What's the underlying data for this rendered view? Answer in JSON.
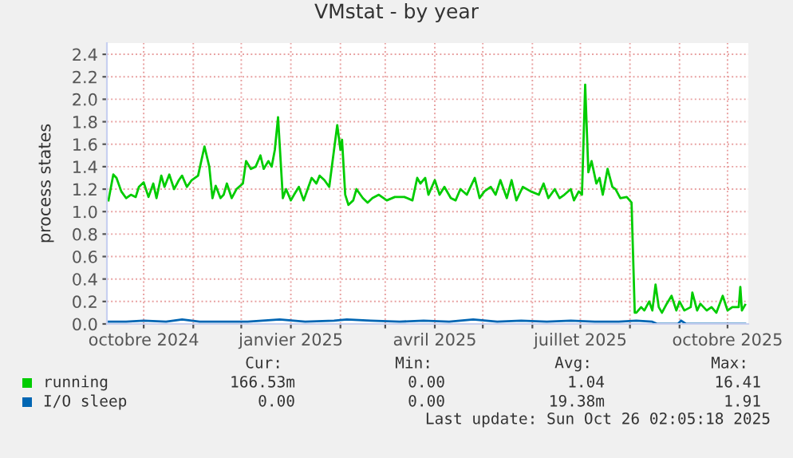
{
  "chart_data": {
    "type": "line",
    "title": "VMstat - by year",
    "ylabel": "process states",
    "legend": "bottom",
    "grid": true,
    "line_style": "solid",
    "marker": "none",
    "xlim": [
      "2024-09-08",
      "2025-10-14"
    ],
    "ylim": [
      0,
      2.5
    ],
    "xticks": [
      {
        "value": "2024-10-01",
        "label": "octobre 2024"
      },
      {
        "value": "2024-11-01",
        "label": null
      },
      {
        "value": "2024-12-01",
        "label": null
      },
      {
        "value": "2025-01-01",
        "label": "janvier 2025"
      },
      {
        "value": "2025-02-01",
        "label": null
      },
      {
        "value": "2025-03-01",
        "label": null
      },
      {
        "value": "2025-04-01",
        "label": "avril 2025"
      },
      {
        "value": "2025-05-01",
        "label": null
      },
      {
        "value": "2025-06-01",
        "label": null
      },
      {
        "value": "2025-07-01",
        "label": "juillet 2025"
      },
      {
        "value": "2025-08-01",
        "label": null
      },
      {
        "value": "2025-09-01",
        "label": null
      },
      {
        "value": "2025-10-01",
        "label": "octobre 2025"
      }
    ],
    "yticks": [
      {
        "value": 0,
        "label": "0.0"
      },
      {
        "value": 0.2,
        "label": "0.2"
      },
      {
        "value": 0.4,
        "label": "0.4"
      },
      {
        "value": 0.6,
        "label": "0.6"
      },
      {
        "value": 0.8,
        "label": "0.8"
      },
      {
        "value": 1.0,
        "label": "1.0"
      },
      {
        "value": 1.2,
        "label": "1.2"
      },
      {
        "value": 1.4,
        "label": "1.4"
      },
      {
        "value": 1.6,
        "label": "1.6"
      },
      {
        "value": 1.8,
        "label": "1.8"
      },
      {
        "value": 2.0,
        "label": "2.0"
      },
      {
        "value": 2.2,
        "label": "2.2"
      },
      {
        "value": 2.4,
        "label": "2.4"
      }
    ],
    "series": [
      {
        "name": "running",
        "color": "#00cc00",
        "x": [
          "2024-09-09",
          "2024-09-12",
          "2024-09-14",
          "2024-09-17",
          "2024-09-20",
          "2024-09-23",
          "2024-09-26",
          "2024-09-28",
          "2024-10-01",
          "2024-10-04",
          "2024-10-07",
          "2024-10-09",
          "2024-10-12",
          "2024-10-14",
          "2024-10-17",
          "2024-10-20",
          "2024-10-23",
          "2024-10-25",
          "2024-10-28",
          "2024-10-31",
          "2024-11-04",
          "2024-11-08",
          "2024-11-11",
          "2024-11-13",
          "2024-11-15",
          "2024-11-18",
          "2024-11-20",
          "2024-11-22",
          "2024-11-25",
          "2024-11-28",
          "2024-12-02",
          "2024-12-04",
          "2024-12-07",
          "2024-12-10",
          "2024-12-13",
          "2024-12-15",
          "2024-12-18",
          "2024-12-20",
          "2024-12-22",
          "2024-12-24",
          "2024-12-27",
          "2024-12-29",
          "2025-01-01",
          "2025-01-03",
          "2025-01-06",
          "2025-01-09",
          "2025-01-12",
          "2025-01-14",
          "2025-01-17",
          "2025-01-19",
          "2025-01-22",
          "2025-01-25",
          "2025-01-28",
          "2025-01-30",
          "2025-02-01",
          "2025-02-02",
          "2025-02-04",
          "2025-02-06",
          "2025-02-09",
          "2025-02-11",
          "2025-02-15",
          "2025-02-18",
          "2025-02-21",
          "2025-02-25",
          "2025-03-02",
          "2025-03-07",
          "2025-03-13",
          "2025-03-18",
          "2025-03-21",
          "2025-03-23",
          "2025-03-26",
          "2025-03-28",
          "2025-04-01",
          "2025-04-04",
          "2025-04-07",
          "2025-04-11",
          "2025-04-14",
          "2025-04-17",
          "2025-04-21",
          "2025-04-26",
          "2025-04-29",
          "2025-05-02",
          "2025-05-06",
          "2025-05-09",
          "2025-05-12",
          "2025-05-16",
          "2025-05-19",
          "2025-05-22",
          "2025-05-26",
          "2025-05-31",
          "2025-06-05",
          "2025-06-08",
          "2025-06-11",
          "2025-06-15",
          "2025-06-18",
          "2025-06-21",
          "2025-06-25",
          "2025-06-27",
          "2025-06-30",
          "2025-07-02",
          "2025-07-04",
          "2025-07-06",
          "2025-07-08",
          "2025-07-11",
          "2025-07-13",
          "2025-07-15",
          "2025-07-18",
          "2025-07-21",
          "2025-07-23",
          "2025-07-26",
          "2025-07-30",
          "2025-08-02",
          "2025-08-04",
          "2025-08-05",
          "2025-08-08",
          "2025-08-10",
          "2025-08-13",
          "2025-08-15",
          "2025-08-17",
          "2025-08-19",
          "2025-08-21",
          "2025-08-24",
          "2025-08-27",
          "2025-08-30",
          "2025-09-01",
          "2025-09-04",
          "2025-09-08",
          "2025-09-09",
          "2025-09-12",
          "2025-09-14",
          "2025-09-18",
          "2025-09-21",
          "2025-09-24",
          "2025-09-28",
          "2025-10-01",
          "2025-10-04",
          "2025-10-08",
          "2025-10-09",
          "2025-10-10",
          "2025-10-12"
        ],
        "values": [
          1.1,
          1.33,
          1.3,
          1.18,
          1.12,
          1.15,
          1.13,
          1.22,
          1.26,
          1.13,
          1.25,
          1.12,
          1.32,
          1.22,
          1.33,
          1.2,
          1.28,
          1.32,
          1.22,
          1.28,
          1.32,
          1.58,
          1.4,
          1.12,
          1.23,
          1.12,
          1.15,
          1.25,
          1.12,
          1.2,
          1.25,
          1.45,
          1.38,
          1.4,
          1.5,
          1.38,
          1.45,
          1.4,
          1.55,
          1.84,
          1.12,
          1.2,
          1.1,
          1.15,
          1.22,
          1.1,
          1.22,
          1.3,
          1.25,
          1.32,
          1.28,
          1.22,
          1.55,
          1.77,
          1.55,
          1.64,
          1.15,
          1.06,
          1.1,
          1.2,
          1.12,
          1.08,
          1.12,
          1.15,
          1.1,
          1.13,
          1.13,
          1.1,
          1.3,
          1.25,
          1.3,
          1.15,
          1.28,
          1.15,
          1.22,
          1.12,
          1.1,
          1.2,
          1.15,
          1.3,
          1.12,
          1.18,
          1.22,
          1.15,
          1.28,
          1.12,
          1.28,
          1.1,
          1.22,
          1.18,
          1.15,
          1.25,
          1.12,
          1.2,
          1.12,
          1.15,
          1.2,
          1.1,
          1.18,
          1.15,
          2.13,
          1.35,
          1.45,
          1.25,
          1.3,
          1.15,
          1.38,
          1.22,
          1.2,
          1.12,
          1.13,
          1.08,
          0.1,
          0.1,
          0.15,
          0.12,
          0.2,
          0.12,
          0.35,
          0.15,
          0.1,
          0.18,
          0.25,
          0.12,
          0.2,
          0.12,
          0.15,
          0.28,
          0.12,
          0.18,
          0.12,
          0.15,
          0.1,
          0.25,
          0.12,
          0.15,
          0.15,
          0.33,
          0.12,
          0.17
        ]
      },
      {
        "name": "I/O sleep",
        "color": "#0066b3",
        "x": [
          "2024-09-09",
          "2024-09-20",
          "2024-10-01",
          "2024-10-15",
          "2024-10-25",
          "2024-11-05",
          "2024-11-20",
          "2024-12-05",
          "2024-12-25",
          "2025-01-10",
          "2025-01-28",
          "2025-02-05",
          "2025-02-20",
          "2025-03-10",
          "2025-03-25",
          "2025-04-10",
          "2025-04-25",
          "2025-05-10",
          "2025-05-25",
          "2025-06-10",
          "2025-06-25",
          "2025-07-10",
          "2025-07-25",
          "2025-08-05",
          "2025-08-15",
          "2025-08-18",
          "2025-08-31",
          "2025-09-02",
          "2025-09-05",
          "2025-10-12"
        ],
        "values": [
          0.02,
          0.02,
          0.03,
          0.02,
          0.04,
          0.02,
          0.02,
          0.02,
          0.04,
          0.02,
          0.03,
          0.04,
          0.03,
          0.02,
          0.03,
          0.02,
          0.04,
          0.02,
          0.03,
          0.02,
          0.03,
          0.02,
          0.02,
          0.03,
          0.02,
          0.0,
          0.0,
          0.03,
          0.0,
          0.0
        ]
      }
    ],
    "annotations": [
      "Cur:",
      "Min:",
      "Avg:",
      "Max:",
      "166.53m",
      "0.00",
      "1.04",
      "16.41",
      "0.00",
      "0.00",
      "19.38m",
      "1.91",
      "Last update: Sun Oct 26 02:05:18 2025"
    ]
  }
}
